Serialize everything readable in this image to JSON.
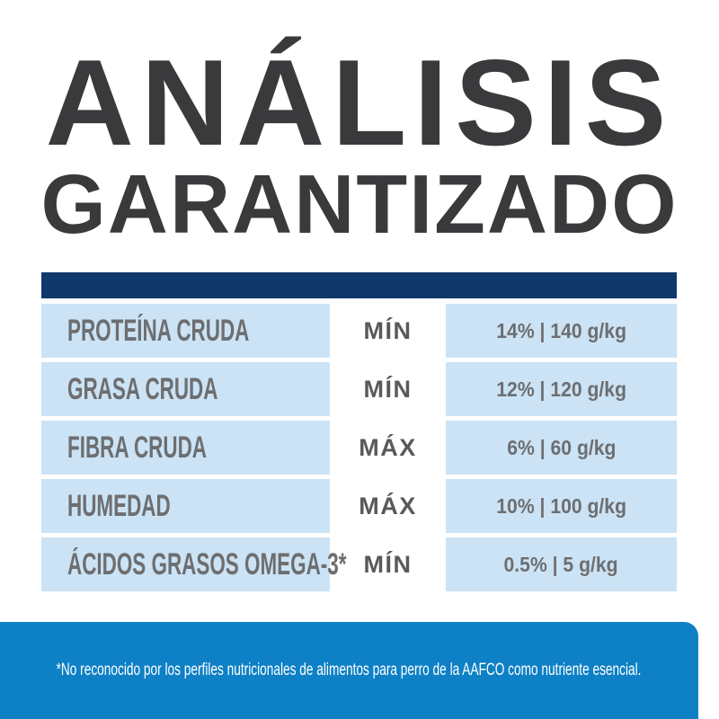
{
  "title": {
    "line1": "ANÁLISIS",
    "line2": "GARANTIZADO"
  },
  "table": {
    "rows": [
      {
        "label": "PROTEÍNA CRUDA",
        "limit": "MÍN",
        "value": "14% | 140 g/kg"
      },
      {
        "label": "GRASA CRUDA",
        "limit": "MÍN",
        "value": "12% | 120 g/kg"
      },
      {
        "label": "FIBRA CRUDA",
        "limit": "MÁX",
        "value": "6% | 60 g/kg"
      },
      {
        "label": "HUMEDAD",
        "limit": "MÁX",
        "value": "10% | 100 g/kg"
      },
      {
        "label": "ÁCIDOS GRASOS OMEGA-3*",
        "limit": "MÍN",
        "value": "0.5% | 5 g/kg"
      }
    ]
  },
  "footnote": "*No reconocido por los perfiles nutricionales de alimentos para perro de la AAFCO como nutriente esencial.",
  "colors": {
    "title": "#3a3a3c",
    "navy": "#10386b",
    "cell": "#cbe3f5",
    "label": "#6d6e70",
    "limit": "#58595b",
    "value": "#6d6e70",
    "footer": "#0e80c5",
    "footer-text": "#ffffff"
  }
}
